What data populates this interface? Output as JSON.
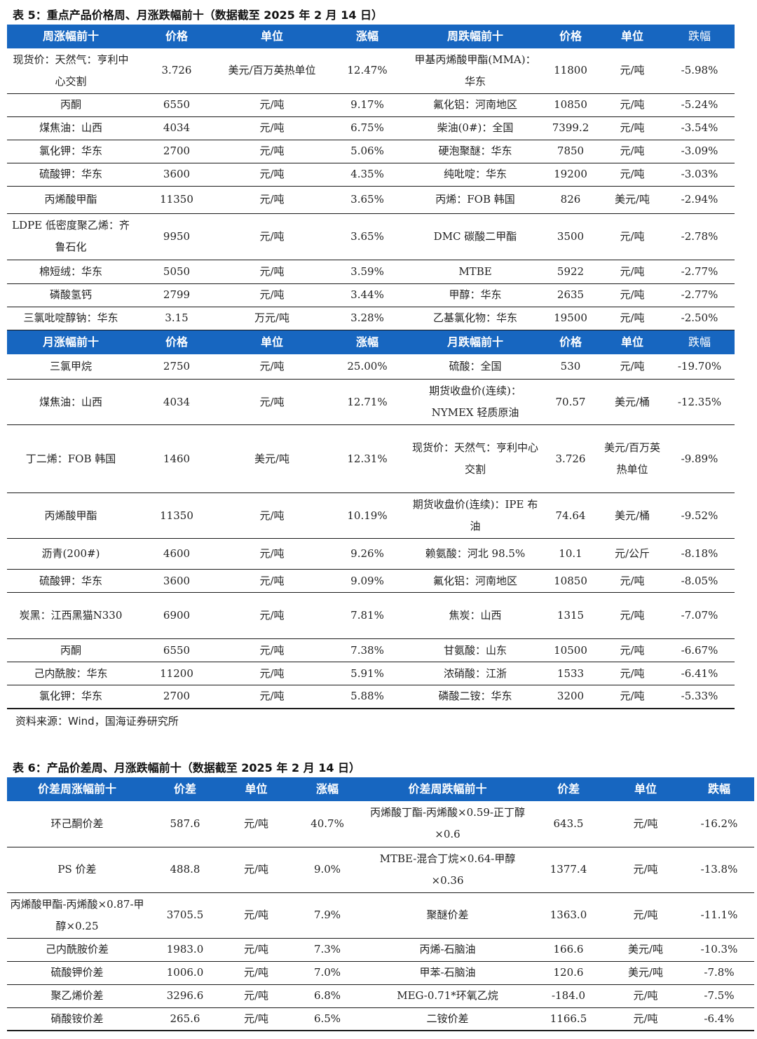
{
  "table5": {
    "title": "表 5：重点产品价格周、月涨跌幅前十（数据截至 2025 年 2 月 14 日）",
    "weekly_header": [
      "周涨幅前十",
      "价格",
      "单位",
      "涨幅",
      "周跌幅前十",
      "价格",
      "单位",
      "跌幅"
    ],
    "weekly_rows": [
      [
        "现货价：天然气：亨利中心交割",
        "3.726",
        "美元/百万英热单位",
        "12.47%",
        "甲基丙烯酸甲酯(MMA)：华东",
        "11800",
        "元/吨",
        "-5.98%"
      ],
      [
        "丙酮",
        "6550",
        "元/吨",
        "9.17%",
        "氟化铝：河南地区",
        "10850",
        "元/吨",
        "-5.24%"
      ],
      [
        "煤焦油：山西",
        "4034",
        "元/吨",
        "6.75%",
        "柴油(0#)：全国",
        "7399.2",
        "元/吨",
        "-3.54%"
      ],
      [
        "氯化钾：华东",
        "2700",
        "元/吨",
        "5.06%",
        "硬泡聚醚：华东",
        "7850",
        "元/吨",
        "-3.09%"
      ],
      [
        "硫酸钾：华东",
        "3600",
        "元/吨",
        "4.35%",
        "纯吡啶：华东",
        "19200",
        "元/吨",
        "-3.03%"
      ],
      [
        "丙烯酸甲酯",
        "11350",
        "元/吨",
        "3.65%",
        "丙烯：FOB 韩国",
        "826",
        "美元/吨",
        "-2.94%"
      ],
      [
        "LDPE 低密度聚乙烯：齐鲁石化",
        "9950",
        "元/吨",
        "3.65%",
        "DMC 碳酸二甲酯",
        "3500",
        "元/吨",
        "-2.78%"
      ],
      [
        "棉短绒：华东",
        "5050",
        "元/吨",
        "3.59%",
        "MTBE",
        "5922",
        "元/吨",
        "-2.77%"
      ],
      [
        "磷酸氢钙",
        "2799",
        "元/吨",
        "3.44%",
        "甲醇：华东",
        "2635",
        "元/吨",
        "-2.77%"
      ],
      [
        "三氯吡啶醇钠：华东",
        "3.15",
        "万元/吨",
        "3.28%",
        "乙基氯化物：华东",
        "19500",
        "元/吨",
        "-2.50%"
      ]
    ],
    "monthly_header": [
      "月涨幅前十",
      "价格",
      "单位",
      "涨幅",
      "月跌幅前十",
      "价格",
      "单位",
      "跌幅"
    ],
    "monthly_rows": [
      [
        "三氯甲烷",
        "2750",
        "元/吨",
        "25.00%",
        "硫酸：全国",
        "530",
        "元/吨",
        "-19.70%"
      ],
      [
        "煤焦油：山西",
        "4034",
        "元/吨",
        "12.71%",
        "期货收盘价(连续)：NYMEX 轻质原油",
        "70.57",
        "美元/桶",
        "-12.35%"
      ],
      [
        "丁二烯：FOB 韩国",
        "1460",
        "美元/吨",
        "12.31%",
        "现货价：天然气：亨利中心交割",
        "3.726",
        "美元/百万英热单位",
        "-9.89%"
      ],
      [
        "丙烯酸甲酯",
        "11350",
        "元/吨",
        "10.19%",
        "期货收盘价(连续)：IPE 布油",
        "74.64",
        "美元/桶",
        "-9.52%"
      ],
      [
        "沥青(200#)",
        "4600",
        "元/吨",
        "9.26%",
        "赖氨酸：河北 98.5%",
        "10.1",
        "元/公斤",
        "-8.18%"
      ],
      [
        "硫酸钾：华东",
        "3600",
        "元/吨",
        "9.09%",
        "氟化铝：河南地区",
        "10850",
        "元/吨",
        "-8.05%"
      ],
      [
        "炭黑：江西黑猫N330",
        "6900",
        "元/吨",
        "7.81%",
        "焦炭：山西",
        "1315",
        "元/吨",
        "-7.07%"
      ],
      [
        "丙酮",
        "6550",
        "元/吨",
        "7.38%",
        "甘氨酸：山东",
        "10500",
        "元/吨",
        "-6.67%"
      ],
      [
        "己内酰胺：华东",
        "11200",
        "元/吨",
        "5.91%",
        "浓硝酸：江浙",
        "1533",
        "元/吨",
        "-6.41%"
      ],
      [
        "氯化钾：华东",
        "2700",
        "元/吨",
        "5.88%",
        "磷酸二铵：华东",
        "3200",
        "元/吨",
        "-5.33%"
      ]
    ],
    "source": "资料来源：Wind，国海证券研究所"
  },
  "table6": {
    "title": "表 6：产品价差周、月涨跌幅前十（数据截至 2025 年 2 月 14 日）",
    "header": [
      "价差周涨幅前十",
      "价差",
      "单位",
      "涨幅",
      "价差周跌幅前十",
      "价差",
      "单位",
      "跌幅"
    ],
    "rows": [
      [
        "环己酮价差",
        "587.6",
        "元/吨",
        "40.7%",
        "丙烯酸丁酯-丙烯酸×0.59-正丁醇×0.6",
        "643.5",
        "元/吨",
        "-16.2%"
      ],
      [
        "PS 价差",
        "488.8",
        "元/吨",
        "9.0%",
        "MTBE-混合丁烷×0.64-甲醇×0.36",
        "1377.4",
        "元/吨",
        "-13.8%"
      ],
      [
        "丙烯酸甲酯-丙烯酸×0.87-甲醇×0.25",
        "3705.5",
        "元/吨",
        "7.9%",
        "聚醚价差",
        "1363.0",
        "元/吨",
        "-11.1%"
      ],
      [
        "己内酰胺价差",
        "1983.0",
        "元/吨",
        "7.3%",
        "丙烯-石脑油",
        "166.6",
        "美元/吨",
        "-10.3%"
      ],
      [
        "硫酸钾价差",
        "1006.0",
        "元/吨",
        "7.0%",
        "甲苯-石脑油",
        "120.6",
        "美元/吨",
        "-7.8%"
      ],
      [
        "聚乙烯价差",
        "3296.6",
        "元/吨",
        "6.8%",
        "MEG-0.71*环氧乙烷",
        "-184.0",
        "元/吨",
        "-7.5%"
      ],
      [
        "硝酸铵价差",
        "265.6",
        "元/吨",
        "6.5%",
        "二铵价差",
        "1166.5",
        "元/吨",
        "-6.4%"
      ]
    ]
  }
}
